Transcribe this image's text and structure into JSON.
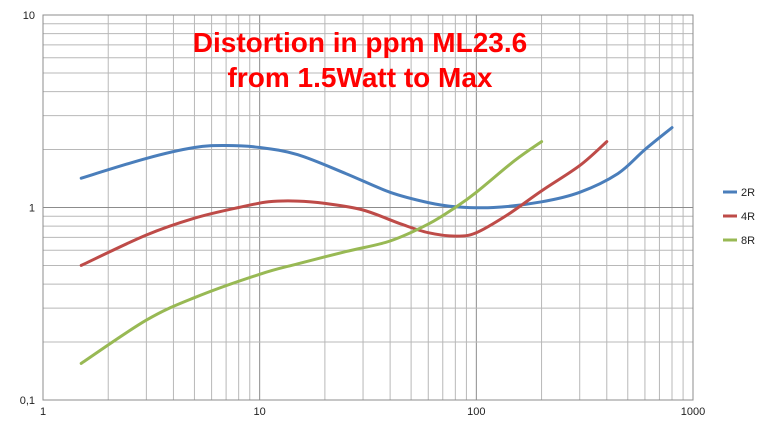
{
  "chart_data": {
    "type": "line",
    "title_lines": [
      "Distortion in ppm ML23.6",
      "from 1.5Watt to Max"
    ],
    "xlabel": "",
    "ylabel": "",
    "x_scale": "log",
    "y_scale": "log",
    "xlim": [
      1,
      1000
    ],
    "ylim": [
      0.1,
      10
    ],
    "x_tick_labels": [
      "1",
      "10",
      "100",
      "1000"
    ],
    "y_tick_labels": [
      "0,1",
      "1",
      "10"
    ],
    "grid": true,
    "legend_position": "right",
    "title_color": "#ff0000",
    "series": [
      {
        "name": "2R",
        "color": "#4a7ebb",
        "points": [
          [
            1.5,
            1.42
          ],
          [
            3,
            1.8
          ],
          [
            5,
            2.05
          ],
          [
            7,
            2.1
          ],
          [
            10,
            2.05
          ],
          [
            15,
            1.88
          ],
          [
            25,
            1.5
          ],
          [
            40,
            1.2
          ],
          [
            60,
            1.06
          ],
          [
            80,
            1.01
          ],
          [
            120,
            1.0
          ],
          [
            200,
            1.07
          ],
          [
            300,
            1.2
          ],
          [
            450,
            1.5
          ],
          [
            600,
            2.0
          ],
          [
            800,
            2.6
          ]
        ]
      },
      {
        "name": "4R",
        "color": "#be4b48",
        "points": [
          [
            1.5,
            0.5
          ],
          [
            3,
            0.72
          ],
          [
            5,
            0.88
          ],
          [
            8,
            1.0
          ],
          [
            11,
            1.07
          ],
          [
            15,
            1.08
          ],
          [
            20,
            1.05
          ],
          [
            30,
            0.97
          ],
          [
            45,
            0.82
          ],
          [
            60,
            0.74
          ],
          [
            80,
            0.71
          ],
          [
            100,
            0.74
          ],
          [
            140,
            0.92
          ],
          [
            200,
            1.22
          ],
          [
            300,
            1.65
          ],
          [
            400,
            2.2
          ]
        ]
      },
      {
        "name": "8R",
        "color": "#98b954",
        "points": [
          [
            1.5,
            0.155
          ],
          [
            3,
            0.26
          ],
          [
            5,
            0.34
          ],
          [
            10,
            0.45
          ],
          [
            15,
            0.51
          ],
          [
            25,
            0.59
          ],
          [
            40,
            0.67
          ],
          [
            60,
            0.82
          ],
          [
            80,
            1.0
          ],
          [
            100,
            1.2
          ],
          [
            150,
            1.75
          ],
          [
            200,
            2.2
          ]
        ]
      }
    ]
  }
}
